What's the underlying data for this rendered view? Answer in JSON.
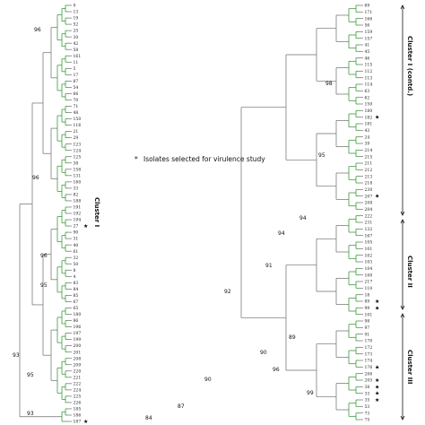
{
  "legend": {
    "text": "Isolates selected for virulence study",
    "marker": "*"
  },
  "left_panel": {
    "leaves": [
      "9",
      "13",
      "19",
      "52",
      "25",
      "30",
      "42",
      "58",
      "161",
      "11",
      "5",
      "17",
      "87",
      "54",
      "66",
      "70",
      "71",
      "48",
      "150",
      "116",
      "21",
      "29",
      "123",
      "124",
      "125",
      "38",
      "158",
      "131",
      "160",
      "33",
      "82",
      "188",
      "191",
      "192",
      "194",
      "27",
      "90",
      "31",
      "40",
      "61",
      "32",
      "50",
      "8",
      "4",
      "83",
      "84",
      "85",
      "67",
      "65",
      "180",
      "86",
      "196",
      "197",
      "199",
      "200",
      "201",
      "208",
      "209",
      "220",
      "221",
      "222",
      "224",
      "225",
      "226",
      "185",
      "186",
      "187"
    ],
    "starred": [
      "27",
      "187"
    ],
    "bootstrap": [
      "96",
      "96",
      "96",
      "95",
      "93",
      "95",
      "93"
    ],
    "cluster_label": "Cluster I"
  },
  "right_panel": {
    "leaves": [
      "69",
      "171",
      "166",
      "56",
      "159",
      "157",
      "41",
      "45",
      "46",
      "115",
      "112",
      "113",
      "114",
      "63",
      "62",
      "150",
      "180",
      "182",
      "181",
      "43",
      "24",
      "39",
      "214",
      "215",
      "211",
      "212",
      "213",
      "218",
      "230",
      "207",
      "208",
      "204",
      "222",
      "231",
      "132",
      "167",
      "105",
      "101",
      "102",
      "103",
      "104",
      "100",
      "217",
      "110",
      "18",
      "89",
      "99",
      "101",
      "98",
      "97",
      "91",
      "170",
      "172",
      "173",
      "174",
      "176",
      "206",
      "205",
      "38",
      "33",
      "35",
      "53",
      "73",
      "75"
    ],
    "starred": [
      "182",
      "207",
      "99",
      "89",
      "176",
      "205",
      "38",
      "33",
      "35"
    ],
    "bootstrap": [
      "98",
      "95",
      "94",
      "94",
      "91",
      "92",
      "89",
      "90",
      "96",
      "90",
      "87",
      "84",
      "99"
    ],
    "cluster_labels": [
      "Cluster I (contd.)",
      "Cluster II",
      "Cluster III"
    ]
  }
}
